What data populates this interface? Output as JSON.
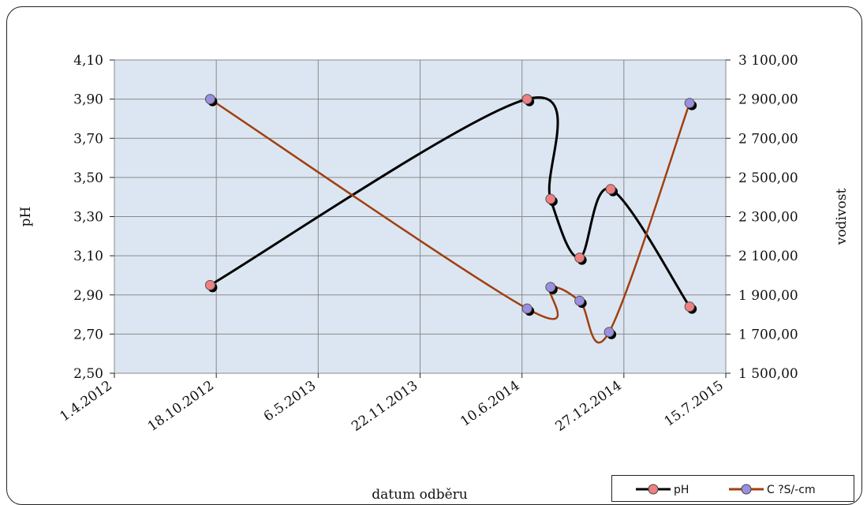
{
  "chart_data": {
    "type": "line",
    "xlabel": "datum odběru",
    "ylabel": "pH",
    "y2label": "vodivost",
    "x_ticks": [
      "1.4.2012",
      "18.10.2012",
      "6.5.2013",
      "22.11.2013",
      "10.6.2014",
      "27.12.2014",
      "15.7.2015"
    ],
    "x_range": [
      "2012-04-01",
      "2015-07-15"
    ],
    "ylim": [
      2.5,
      4.1
    ],
    "y_ticks": [
      "2,50",
      "2,70",
      "2,90",
      "3,10",
      "3,30",
      "3,50",
      "3,70",
      "3,90",
      "4,10"
    ],
    "y2lim": [
      1500,
      3100
    ],
    "y2_ticks": [
      "1 500,00",
      "1 700,00",
      "1 900,00",
      "2 100,00",
      "2 300,00",
      "2 500,00",
      "2 700,00",
      "2 900,00",
      "3 100,00"
    ],
    "grid": true,
    "legend_position": "bottom-right",
    "series": [
      {
        "name": "pH",
        "axis": "left",
        "color": "#000000",
        "marker_color": "#f08080",
        "points": [
          {
            "x": "2012-10-06",
            "y": 2.95
          },
          {
            "x": "2014-06-20",
            "y": 3.9
          },
          {
            "x": "2014-08-05",
            "y": 3.39
          },
          {
            "x": "2014-10-01",
            "y": 3.09
          },
          {
            "x": "2014-12-01",
            "y": 3.44
          },
          {
            "x": "2015-05-05",
            "y": 2.84
          }
        ]
      },
      {
        "name": "C ?S/-cm",
        "axis": "right",
        "color": "#a0400f",
        "marker_color": "#9b8fe0",
        "points": [
          {
            "x": "2012-10-06",
            "y": 2900
          },
          {
            "x": "2014-06-20",
            "y": 1830
          },
          {
            "x": "2014-08-05",
            "y": 1940
          },
          {
            "x": "2014-10-01",
            "y": 1870
          },
          {
            "x": "2014-11-28",
            "y": 1710
          },
          {
            "x": "2015-05-05",
            "y": 2880
          }
        ]
      }
    ]
  }
}
